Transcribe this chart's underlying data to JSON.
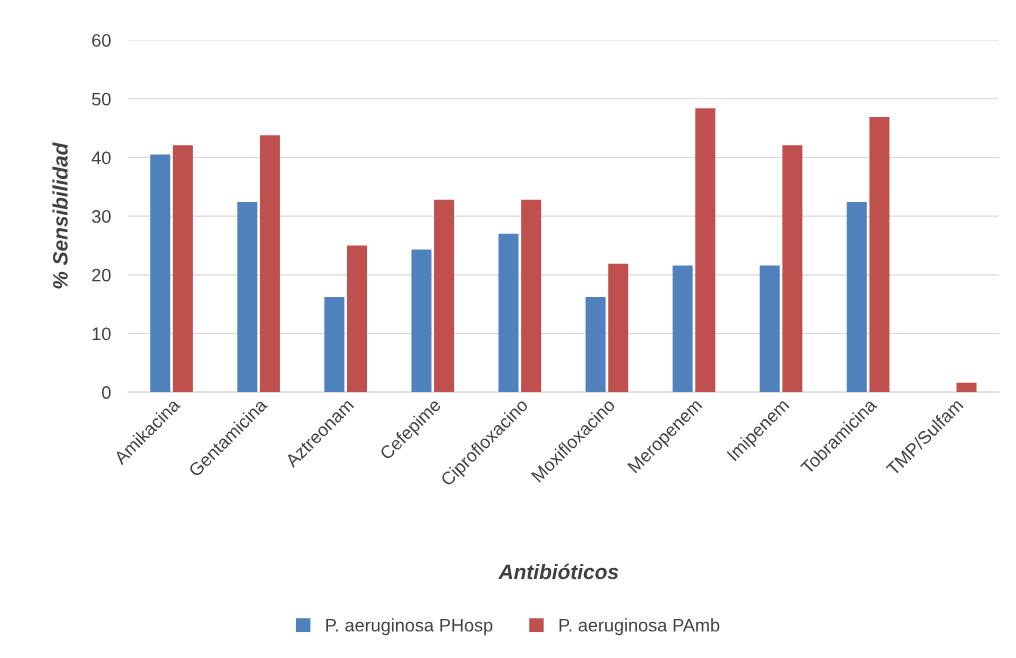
{
  "chart_data": {
    "type": "bar",
    "xlabel": "Antibióticos",
    "ylabel": "% Sensibilidad",
    "categories": [
      "Amikacina",
      "Gentamicina",
      "Aztreonam",
      "Cefepime",
      "Ciprofloxacino",
      "Moxifloxacino",
      "Meropenem",
      "Imipenem",
      "Tobramicina",
      "TMP/Sulfam"
    ],
    "series": [
      {
        "name": "P. aeruginosa PHosp",
        "color": "#4f81bd",
        "values": [
          40.5,
          32.4,
          16.2,
          24.3,
          27.0,
          16.2,
          21.6,
          21.6,
          32.4,
          0
        ]
      },
      {
        "name": "P. aeruginosa PAmb",
        "color": "#c0504d",
        "values": [
          42.1,
          43.8,
          25.0,
          32.8,
          32.8,
          21.9,
          48.4,
          42.1,
          46.9,
          1.6
        ]
      }
    ],
    "ylim": [
      0,
      60
    ],
    "yticks": [
      0,
      10,
      20,
      30,
      40,
      50,
      60
    ],
    "grid": "y",
    "legend": "bottom"
  }
}
